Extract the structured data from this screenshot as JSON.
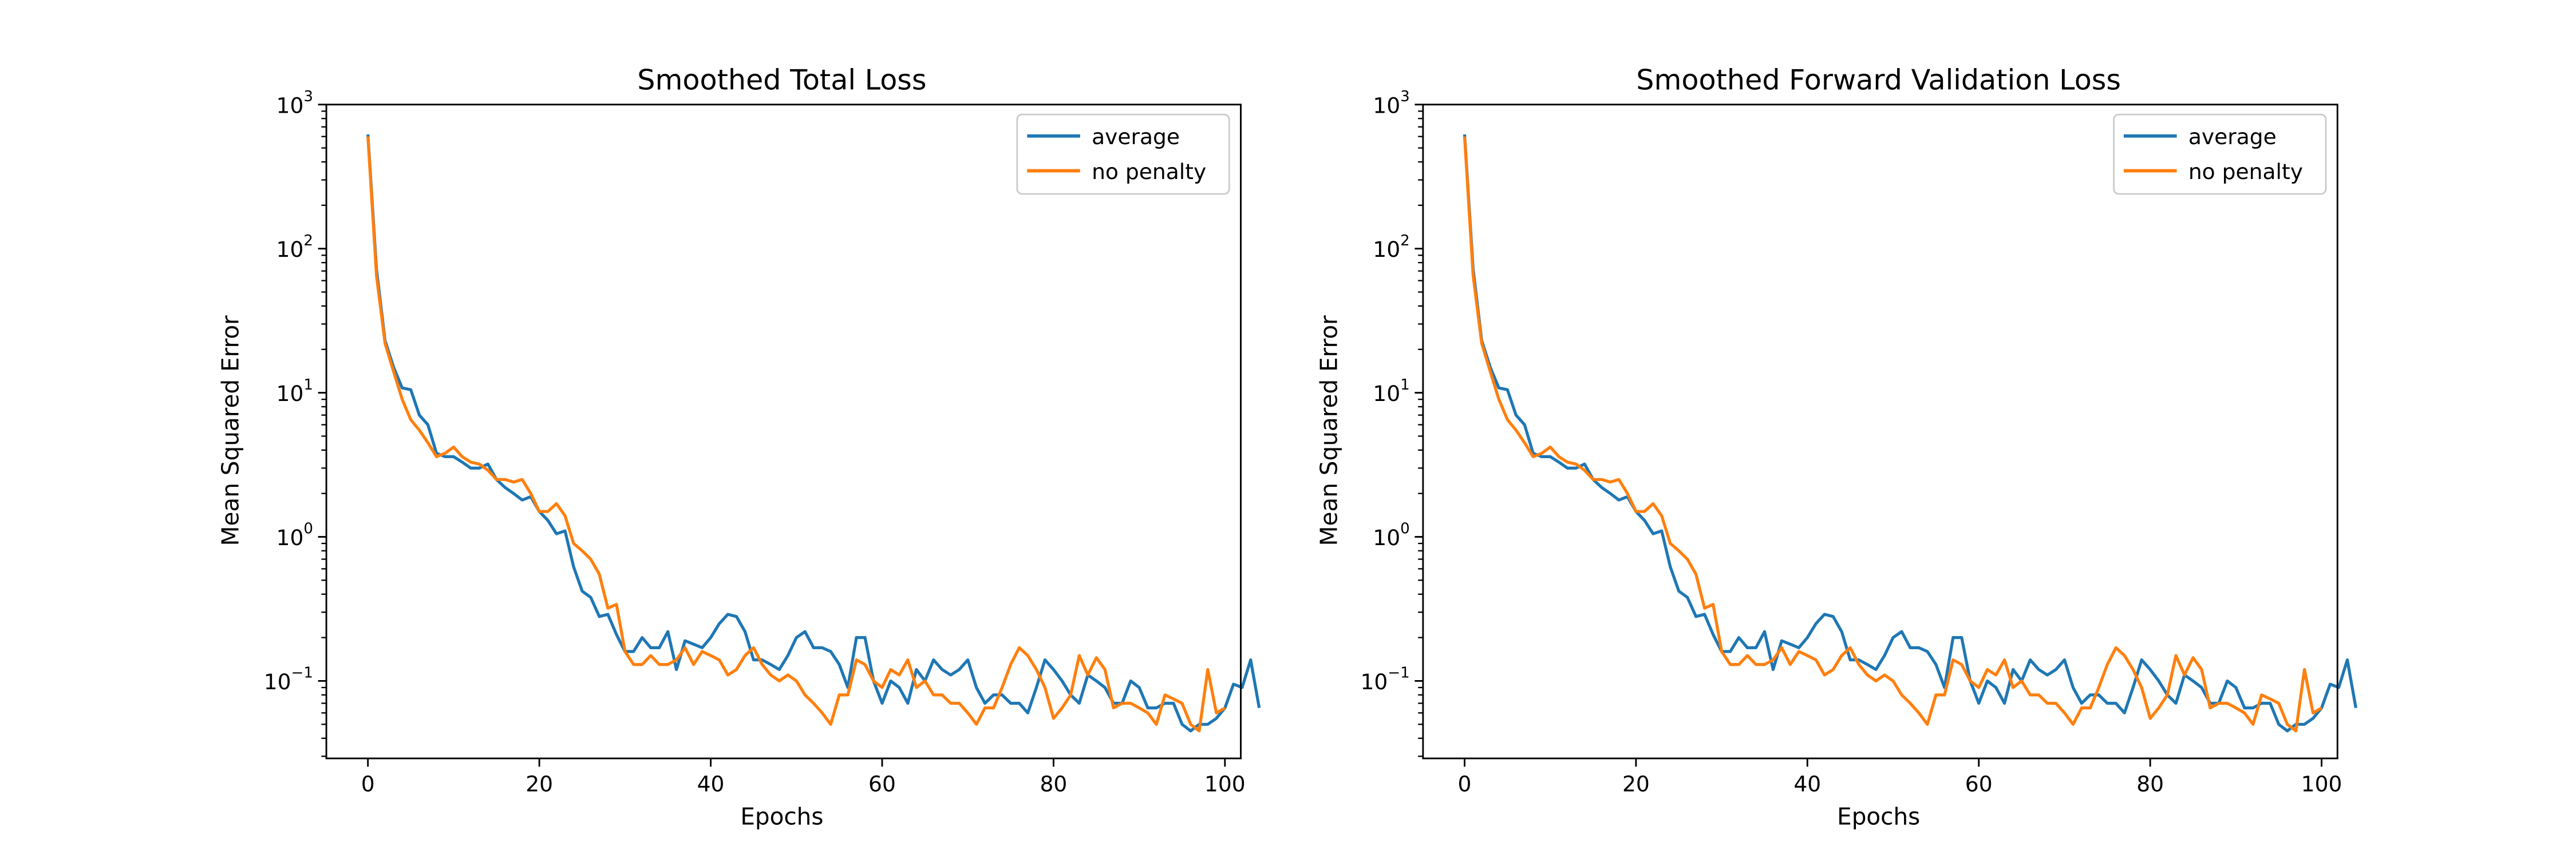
{
  "chart_data": [
    {
      "type": "line",
      "title": "Smoothed Total Loss",
      "xlabel": "Epochs",
      "ylabel": "Mean Squared Error",
      "yscale": "log",
      "xlim": [
        -4.85,
        101.85
      ],
      "ylim": [
        0.029,
        1000
      ],
      "xticks": [
        0,
        20,
        40,
        60,
        80,
        100
      ],
      "xtick_labels": [
        "0",
        "20",
        "40",
        "60",
        "80",
        "100"
      ],
      "yticks": [
        0.1,
        1,
        10,
        100,
        1000
      ],
      "ytick_labels": [
        {
          "base": "10",
          "exp": "−1"
        },
        {
          "base": "10",
          "exp": "0"
        },
        {
          "base": "10",
          "exp": "1"
        },
        {
          "base": "10",
          "exp": "2"
        },
        {
          "base": "10",
          "exp": "3"
        }
      ],
      "grid": false,
      "legend_position": "top-right",
      "series": [
        {
          "name": "average",
          "color": "#1f77b4",
          "values": [
            620,
            72,
            23,
            15,
            10.8,
            10.5,
            7.0,
            6.0,
            3.8,
            3.6,
            3.6,
            3.3,
            3.0,
            3.0,
            3.2,
            2.5,
            2.2,
            2.0,
            1.8,
            1.9,
            1.5,
            1.3,
            1.05,
            1.1,
            0.62,
            0.42,
            0.38,
            0.28,
            0.29,
            0.21,
            0.16,
            0.16,
            0.2,
            0.17,
            0.17,
            0.22,
            0.12,
            0.19,
            0.18,
            0.17,
            0.2,
            0.25,
            0.29,
            0.28,
            0.22,
            0.14,
            0.14,
            0.13,
            0.12,
            0.15,
            0.2,
            0.22,
            0.17,
            0.17,
            0.16,
            0.13,
            0.09,
            0.2,
            0.2,
            0.1,
            0.07,
            0.1,
            0.09,
            0.07,
            0.12,
            0.1,
            0.14,
            0.12,
            0.11,
            0.12,
            0.14,
            0.09,
            0.07,
            0.08,
            0.08,
            0.07,
            0.07,
            0.06,
            0.09,
            0.14,
            0.12,
            0.1,
            0.08,
            0.07,
            0.11,
            0.1,
            0.09,
            0.07,
            0.07,
            0.1,
            0.09,
            0.065,
            0.065,
            0.07,
            0.07,
            0.05,
            0.045,
            0.05,
            0.05,
            0.055,
            0.065,
            0.095,
            0.09,
            0.14,
            0.065
          ]
        },
        {
          "name": "no penalty",
          "color": "#ff7f0e",
          "values": [
            600,
            65,
            22,
            14,
            9.0,
            6.5,
            5.5,
            4.5,
            3.6,
            3.8,
            4.2,
            3.6,
            3.3,
            3.2,
            2.9,
            2.5,
            2.5,
            2.4,
            2.5,
            2.0,
            1.5,
            1.5,
            1.7,
            1.4,
            0.9,
            0.8,
            0.7,
            0.55,
            0.32,
            0.34,
            0.16,
            0.13,
            0.13,
            0.15,
            0.13,
            0.13,
            0.14,
            0.17,
            0.13,
            0.16,
            0.15,
            0.14,
            0.11,
            0.12,
            0.15,
            0.17,
            0.13,
            0.11,
            0.1,
            0.11,
            0.1,
            0.08,
            0.07,
            0.06,
            0.05,
            0.08,
            0.08,
            0.14,
            0.13,
            0.1,
            0.09,
            0.12,
            0.11,
            0.14,
            0.09,
            0.1,
            0.08,
            0.08,
            0.07,
            0.07,
            0.06,
            0.05,
            0.065,
            0.065,
            0.09,
            0.13,
            0.17,
            0.15,
            0.12,
            0.09,
            0.055,
            0.065,
            0.08,
            0.15,
            0.11,
            0.145,
            0.12,
            0.065,
            0.07,
            0.07,
            0.065,
            0.06,
            0.05,
            0.08,
            0.075,
            0.07,
            0.05,
            0.045,
            0.12,
            0.06,
            0.065
          ]
        }
      ]
    },
    {
      "type": "line",
      "title": "Smoothed Forward Validation Loss",
      "xlabel": "Epochs",
      "ylabel": "Mean Squared Error",
      "yscale": "log",
      "xlim": [
        -4.85,
        101.85
      ],
      "ylim": [
        0.029,
        1000
      ],
      "xticks": [
        0,
        20,
        40,
        60,
        80,
        100
      ],
      "xtick_labels": [
        "0",
        "20",
        "40",
        "60",
        "80",
        "100"
      ],
      "yticks": [
        0.1,
        1,
        10,
        100,
        1000
      ],
      "ytick_labels": [
        {
          "base": "10",
          "exp": "−1"
        },
        {
          "base": "10",
          "exp": "0"
        },
        {
          "base": "10",
          "exp": "1"
        },
        {
          "base": "10",
          "exp": "2"
        },
        {
          "base": "10",
          "exp": "3"
        }
      ],
      "grid": false,
      "legend_position": "top-right",
      "series": [
        {
          "name": "average",
          "color": "#1f77b4",
          "values": [
            620,
            72,
            23,
            15,
            10.8,
            10.5,
            7.0,
            6.0,
            3.8,
            3.6,
            3.6,
            3.3,
            3.0,
            3.0,
            3.2,
            2.5,
            2.2,
            2.0,
            1.8,
            1.9,
            1.5,
            1.3,
            1.05,
            1.1,
            0.62,
            0.42,
            0.38,
            0.28,
            0.29,
            0.21,
            0.16,
            0.16,
            0.2,
            0.17,
            0.17,
            0.22,
            0.12,
            0.19,
            0.18,
            0.17,
            0.2,
            0.25,
            0.29,
            0.28,
            0.22,
            0.14,
            0.14,
            0.13,
            0.12,
            0.15,
            0.2,
            0.22,
            0.17,
            0.17,
            0.16,
            0.13,
            0.09,
            0.2,
            0.2,
            0.1,
            0.07,
            0.1,
            0.09,
            0.07,
            0.12,
            0.1,
            0.14,
            0.12,
            0.11,
            0.12,
            0.14,
            0.09,
            0.07,
            0.08,
            0.08,
            0.07,
            0.07,
            0.06,
            0.09,
            0.14,
            0.12,
            0.1,
            0.08,
            0.07,
            0.11,
            0.1,
            0.09,
            0.07,
            0.07,
            0.1,
            0.09,
            0.065,
            0.065,
            0.07,
            0.07,
            0.05,
            0.045,
            0.05,
            0.05,
            0.055,
            0.065,
            0.095,
            0.09,
            0.14,
            0.065
          ]
        },
        {
          "name": "no penalty",
          "color": "#ff7f0e",
          "values": [
            600,
            65,
            22,
            14,
            9.0,
            6.5,
            5.5,
            4.5,
            3.6,
            3.8,
            4.2,
            3.6,
            3.3,
            3.2,
            2.9,
            2.5,
            2.5,
            2.4,
            2.5,
            2.0,
            1.5,
            1.5,
            1.7,
            1.4,
            0.9,
            0.8,
            0.7,
            0.55,
            0.32,
            0.34,
            0.16,
            0.13,
            0.13,
            0.15,
            0.13,
            0.13,
            0.14,
            0.17,
            0.13,
            0.16,
            0.15,
            0.14,
            0.11,
            0.12,
            0.15,
            0.17,
            0.13,
            0.11,
            0.1,
            0.11,
            0.1,
            0.08,
            0.07,
            0.06,
            0.05,
            0.08,
            0.08,
            0.14,
            0.13,
            0.1,
            0.09,
            0.12,
            0.11,
            0.14,
            0.09,
            0.1,
            0.08,
            0.08,
            0.07,
            0.07,
            0.06,
            0.05,
            0.065,
            0.065,
            0.09,
            0.13,
            0.17,
            0.15,
            0.12,
            0.09,
            0.055,
            0.065,
            0.08,
            0.15,
            0.11,
            0.145,
            0.12,
            0.065,
            0.07,
            0.07,
            0.065,
            0.06,
            0.05,
            0.08,
            0.075,
            0.07,
            0.05,
            0.045,
            0.12,
            0.06,
            0.065
          ]
        }
      ]
    }
  ]
}
